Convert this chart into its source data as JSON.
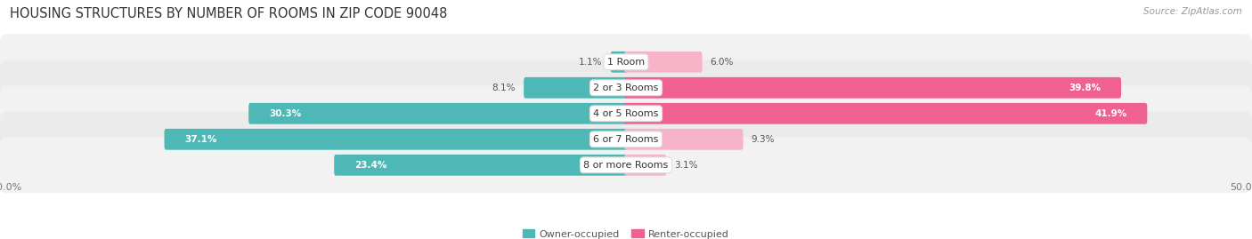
{
  "title": "HOUSING STRUCTURES BY NUMBER OF ROOMS IN ZIP CODE 90048",
  "source": "Source: ZipAtlas.com",
  "categories": [
    "1 Room",
    "2 or 3 Rooms",
    "4 or 5 Rooms",
    "6 or 7 Rooms",
    "8 or more Rooms"
  ],
  "owner_values": [
    1.1,
    8.1,
    30.3,
    37.1,
    23.4
  ],
  "renter_values": [
    6.0,
    39.8,
    41.9,
    9.3,
    3.1
  ],
  "owner_color": "#4db8b5",
  "renter_color": "#f06090",
  "renter_color_light": "#f7b3c8",
  "owner_color_light": "#a8dedd",
  "row_color_even": "#f2f2f2",
  "row_color_odd": "#ebebeb",
  "xlim": 50.0,
  "bar_height": 0.52,
  "legend_owner": "Owner-occupied",
  "legend_renter": "Renter-occupied",
  "title_fontsize": 10.5,
  "source_fontsize": 7.5,
  "label_fontsize": 7.5,
  "category_fontsize": 8,
  "axis_label_fontsize": 8
}
